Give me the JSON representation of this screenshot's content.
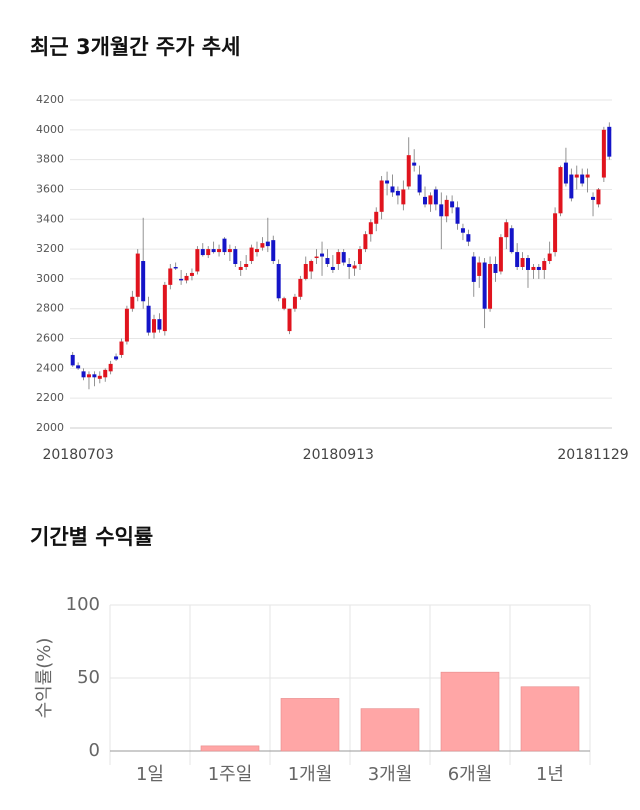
{
  "chart_data": [
    {
      "type": "candlestick",
      "title": "최근 3개월간 주가 추세",
      "categories": [
        null,
        "20180703",
        null,
        null,
        null,
        null,
        null,
        null,
        null,
        null,
        null,
        null,
        null,
        null,
        null,
        null,
        null,
        null,
        null,
        null,
        null,
        null,
        null,
        null,
        null,
        null,
        null,
        null,
        null,
        null,
        null,
        null,
        null,
        null,
        null,
        null,
        null,
        null,
        null,
        null,
        null,
        null,
        null,
        null,
        null,
        null,
        null,
        null,
        null,
        "20180913",
        null,
        null,
        null,
        null,
        null,
        null,
        null,
        null,
        null,
        null,
        null,
        null,
        null,
        null,
        null,
        null,
        null,
        null,
        null,
        null,
        null,
        null,
        null,
        null,
        null,
        null,
        null,
        null,
        null,
        null,
        null,
        null,
        null,
        null,
        null,
        null,
        null,
        null,
        null,
        null,
        null,
        null,
        null,
        null,
        null,
        null,
        "20181129",
        null,
        null,
        null
      ],
      "open": [
        2490,
        2420,
        2380,
        2340,
        2360,
        2330,
        2340,
        2380,
        2480,
        2490,
        2580,
        2800,
        2880,
        3120,
        2820,
        2640,
        2730,
        2650,
        2960,
        3080,
        3000,
        2990,
        3020,
        3050,
        3200,
        3160,
        3200,
        3180,
        3270,
        3180,
        3200,
        3060,
        3080,
        3120,
        3180,
        3210,
        3250,
        3260,
        3100,
        2800,
        2650,
        2800,
        2880,
        3000,
        3050,
        3140,
        3170,
        3140,
        3080,
        3100,
        3180,
        3100,
        3070,
        3100,
        3200,
        3300,
        3370,
        3450,
        3660,
        3620,
        3590,
        3500,
        3620,
        3780,
        3700,
        3550,
        3500,
        3600,
        3500,
        3420,
        3520,
        3480,
        3340,
        3300,
        3150,
        3020,
        3110,
        2800,
        3100,
        3050,
        3280,
        3340,
        3180,
        3080,
        3140,
        3060,
        3080,
        3060,
        3120,
        3180,
        3440,
        3780,
        3700,
        3680,
        3700,
        3680,
        3550,
        3500,
        3680,
        4020
      ],
      "high": [
        2510,
        2440,
        2400,
        2380,
        2380,
        2380,
        2400,
        2450,
        2500,
        2600,
        2820,
        2920,
        3200,
        3410,
        2880,
        2760,
        2770,
        2980,
        3100,
        3110,
        3060,
        3040,
        3070,
        3220,
        3240,
        3220,
        3250,
        3230,
        3280,
        3230,
        3220,
        3120,
        3160,
        3230,
        3250,
        3280,
        3410,
        3290,
        3130,
        2880,
        2800,
        2900,
        3020,
        3150,
        3130,
        3200,
        3250,
        3200,
        3160,
        3200,
        3200,
        3140,
        3120,
        3220,
        3320,
        3400,
        3480,
        3690,
        3720,
        3700,
        3620,
        3660,
        3950,
        3870,
        3760,
        3620,
        3580,
        3620,
        3580,
        3560,
        3560,
        3520,
        3370,
        3330,
        3180,
        3150,
        3140,
        3150,
        3150,
        3300,
        3400,
        3360,
        3240,
        3180,
        3160,
        3100,
        3100,
        3140,
        3250,
        3480,
        3760,
        3880,
        3740,
        3760,
        3740,
        3740,
        3580,
        3610,
        4020,
        4050
      ],
      "low": [
        2410,
        2390,
        2320,
        2260,
        2280,
        2300,
        2310,
        2360,
        2450,
        2470,
        2560,
        2780,
        2850,
        2800,
        2620,
        2600,
        2640,
        2620,
        2930,
        3060,
        2960,
        2970,
        2990,
        3030,
        3150,
        3140,
        3170,
        3150,
        3160,
        3120,
        3080,
        3020,
        3060,
        3100,
        3150,
        3190,
        3180,
        3100,
        2850,
        2790,
        2630,
        2780,
        2860,
        2990,
        3000,
        3100,
        3020,
        3080,
        3040,
        3060,
        3090,
        3000,
        3020,
        3060,
        3180,
        3250,
        3320,
        3400,
        3560,
        3550,
        3500,
        3460,
        3600,
        3720,
        3560,
        3480,
        3450,
        3460,
        3200,
        3380,
        3440,
        3330,
        3260,
        3220,
        2880,
        2940,
        2670,
        2780,
        2980,
        3030,
        3200,
        3170,
        3060,
        3060,
        2940,
        3000,
        3000,
        3000,
        3100,
        3150,
        3420,
        3620,
        3520,
        3600,
        3620,
        3580,
        3420,
        3480,
        3650,
        3800
      ],
      "close": [
        2420,
        2400,
        2340,
        2360,
        2340,
        2350,
        2390,
        2430,
        2460,
        2580,
        2800,
        2880,
        3170,
        2850,
        2640,
        2730,
        2660,
        2960,
        3070,
        3070,
        2990,
        3020,
        3040,
        3200,
        3160,
        3200,
        3180,
        3200,
        3180,
        3200,
        3100,
        3080,
        3100,
        3210,
        3200,
        3240,
        3220,
        3120,
        2870,
        2870,
        2800,
        2880,
        3000,
        3100,
        3120,
        3150,
        3150,
        3100,
        3060,
        3180,
        3110,
        3080,
        3090,
        3200,
        3300,
        3380,
        3450,
        3660,
        3640,
        3580,
        3560,
        3600,
        3830,
        3760,
        3580,
        3500,
        3560,
        3500,
        3420,
        3530,
        3480,
        3370,
        3310,
        3250,
        2980,
        3110,
        2800,
        3100,
        3040,
        3280,
        3380,
        3180,
        3080,
        3140,
        3060,
        3080,
        3060,
        3120,
        3170,
        3440,
        3750,
        3640,
        3540,
        3700,
        3640,
        3700,
        3530,
        3600,
        4000,
        3820
      ],
      "up_color": "#e0141e",
      "down_color": "#1414c8",
      "ylim": [
        2000,
        4200
      ],
      "yticks": [
        2000,
        2200,
        2400,
        2600,
        2800,
        3000,
        3200,
        3400,
        3600,
        3800,
        4000,
        4200
      ],
      "grid": true
    },
    {
      "type": "bar",
      "title": "기간별 수익률",
      "ylabel": "수익률(%)",
      "categories": [
        "1일",
        "1주일",
        "1개월",
        "3개월",
        "6개월",
        "1년"
      ],
      "values": [
        0,
        3.5,
        36,
        29,
        54,
        44
      ],
      "color": "#ffa6a6",
      "ylim": [
        0,
        100
      ],
      "yticks": [
        0,
        50,
        100
      ],
      "grid": true
    }
  ]
}
